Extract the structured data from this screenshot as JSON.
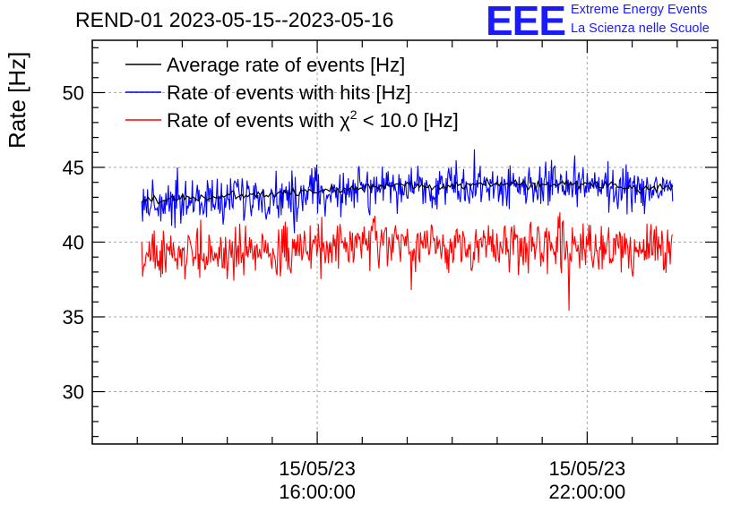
{
  "title": "REND-01 2023-05-15--2023-05-16",
  "logo": {
    "mark": "EEE",
    "line1": "Extreme Energy Events",
    "line2": "La Scienza nelle Scuole",
    "color": "#1a1aff"
  },
  "chart_data": {
    "type": "line",
    "title": "REND-01 2023-05-15--2023-05-16",
    "ylabel": "Rate [Hz]",
    "xlabel": "",
    "ylim": [
      26.5,
      53.5
    ],
    "xlim_hours": [
      11.0,
      24.9
    ],
    "grid": true,
    "yticks": [
      {
        "value": 30,
        "label": "30"
      },
      {
        "value": 35,
        "label": "35"
      },
      {
        "value": 40,
        "label": "40"
      },
      {
        "value": 45,
        "label": "45"
      },
      {
        "value": 50,
        "label": "50"
      }
    ],
    "xticks": [
      {
        "hour": 16,
        "date": "15/05/23",
        "time": "16:00:00"
      },
      {
        "hour": 22,
        "date": "15/05/23",
        "time": "22:00:00"
      }
    ],
    "legend_position": "top-left",
    "series": [
      {
        "name": "Average rate of events [Hz]",
        "color": "#000000",
        "x_start_hour": 12.1,
        "x_end_hour": 23.9,
        "noise": 0.15,
        "anchors": [
          [
            12.1,
            42.8
          ],
          [
            13.5,
            43.0
          ],
          [
            15.0,
            43.2
          ],
          [
            16.0,
            43.4
          ],
          [
            17.0,
            43.7
          ],
          [
            18.0,
            43.8
          ],
          [
            19.0,
            43.8
          ],
          [
            20.0,
            43.9
          ],
          [
            21.0,
            43.8
          ],
          [
            22.0,
            43.9
          ],
          [
            23.0,
            43.6
          ],
          [
            23.9,
            43.7
          ]
        ]
      },
      {
        "name": "Rate of events with hits [Hz]",
        "color": "#0000ff",
        "x_start_hour": 12.1,
        "x_end_hour": 23.9,
        "noise": 0.75,
        "anchors": [
          [
            12.1,
            42.6
          ],
          [
            13.5,
            42.8
          ],
          [
            15.0,
            43.0
          ],
          [
            16.0,
            43.3
          ],
          [
            17.0,
            43.6
          ],
          [
            18.0,
            43.6
          ],
          [
            19.0,
            43.8
          ],
          [
            20.0,
            43.8
          ],
          [
            21.0,
            43.7
          ],
          [
            22.0,
            43.8
          ],
          [
            23.0,
            43.4
          ],
          [
            23.9,
            43.6
          ]
        ],
        "spikes": [
          [
            19.5,
            46.2
          ],
          [
            15.5,
            40.6
          ],
          [
            12.9,
            45.0
          ],
          [
            21.2,
            45.5
          ]
        ]
      },
      {
        "name": "Rate of events with χ² < 10.0 [Hz]",
        "label_prefix": "Rate of events with ",
        "label_chi": "χ",
        "label_sup": "2",
        "label_suffix": " < 10.0 [Hz]",
        "color": "#ff0000",
        "x_start_hour": 12.1,
        "x_end_hour": 23.9,
        "noise": 0.8,
        "anchors": [
          [
            12.1,
            39.0
          ],
          [
            13.5,
            39.2
          ],
          [
            15.0,
            39.4
          ],
          [
            16.0,
            39.6
          ],
          [
            17.0,
            39.9
          ],
          [
            18.0,
            39.8
          ],
          [
            19.0,
            39.7
          ],
          [
            20.0,
            39.8
          ],
          [
            21.0,
            39.9
          ],
          [
            22.0,
            39.8
          ],
          [
            23.0,
            39.5
          ],
          [
            23.9,
            39.6
          ]
        ],
        "spikes": [
          [
            21.6,
            35.4
          ],
          [
            18.1,
            36.8
          ],
          [
            13.4,
            41.5
          ],
          [
            21.4,
            42.0
          ]
        ]
      }
    ]
  }
}
